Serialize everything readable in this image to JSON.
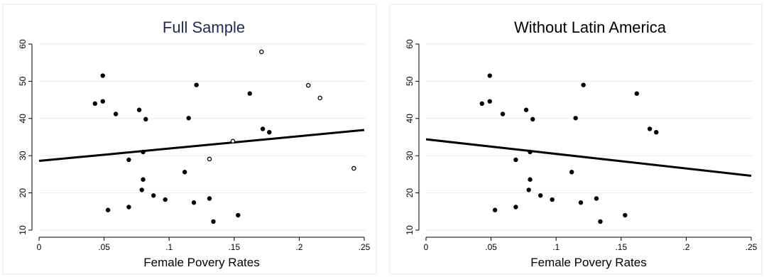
{
  "chart_data": [
    {
      "type": "scatter",
      "title": "Full Sample",
      "title_color": "#1f2a56",
      "xlabel": "Female Povery Rates",
      "ylabel": "",
      "xlim": [
        0,
        0.25
      ],
      "ylim": [
        10,
        60
      ],
      "x_ticks": [
        0,
        0.05,
        0.1,
        0.15,
        0.2,
        0.25
      ],
      "x_tick_labels": [
        "0",
        ".05",
        ".1",
        ".15",
        ".2",
        ".25"
      ],
      "y_ticks": [
        10,
        20,
        30,
        40,
        50,
        60
      ],
      "y_tick_labels": [
        "10",
        "20",
        "30",
        "40",
        "50",
        "60"
      ],
      "grid": "horizontal",
      "series": [
        {
          "marker": "filled-circle",
          "points": [
            [
              0.043,
              44.0
            ],
            [
              0.049,
              44.6
            ],
            [
              0.049,
              51.5
            ],
            [
              0.053,
              15.4
            ],
            [
              0.059,
              41.2
            ],
            [
              0.069,
              28.9
            ],
            [
              0.069,
              16.2
            ],
            [
              0.077,
              42.3
            ],
            [
              0.079,
              20.8
            ],
            [
              0.08,
              31.0
            ],
            [
              0.08,
              23.6
            ],
            [
              0.082,
              39.8
            ],
            [
              0.088,
              19.3
            ],
            [
              0.097,
              18.2
            ],
            [
              0.112,
              25.6
            ],
            [
              0.115,
              40.1
            ],
            [
              0.119,
              17.4
            ],
            [
              0.121,
              49.0
            ],
            [
              0.131,
              18.5
            ],
            [
              0.134,
              12.3
            ],
            [
              0.153,
              14.0
            ],
            [
              0.162,
              46.7
            ],
            [
              0.172,
              37.2
            ],
            [
              0.177,
              36.3
            ]
          ]
        },
        {
          "marker": "hollow-circle",
          "points": [
            [
              0.131,
              29.1
            ],
            [
              0.149,
              33.9
            ],
            [
              0.171,
              57.9
            ],
            [
              0.207,
              48.9
            ],
            [
              0.216,
              45.5
            ],
            [
              0.242,
              26.6
            ]
          ]
        }
      ],
      "fit_line": {
        "x": [
          0,
          0.25
        ],
        "y": [
          28.6,
          36.9
        ]
      }
    },
    {
      "type": "scatter",
      "title": "Without Latin America",
      "title_color": "#000000",
      "xlabel": "Female Povery Rates",
      "ylabel": "",
      "xlim": [
        0,
        0.25
      ],
      "ylim": [
        10,
        60
      ],
      "x_ticks": [
        0,
        0.05,
        0.1,
        0.15,
        0.2,
        0.25
      ],
      "x_tick_labels": [
        "0",
        ".05",
        ".1",
        ".15",
        ".2",
        ".25"
      ],
      "y_ticks": [
        10,
        20,
        30,
        40,
        50,
        60
      ],
      "y_tick_labels": [
        "10",
        "20",
        "30",
        "40",
        "50",
        "60"
      ],
      "grid": "horizontal",
      "series": [
        {
          "marker": "filled-circle",
          "points": [
            [
              0.043,
              44.0
            ],
            [
              0.049,
              44.6
            ],
            [
              0.049,
              51.5
            ],
            [
              0.053,
              15.4
            ],
            [
              0.059,
              41.2
            ],
            [
              0.069,
              28.9
            ],
            [
              0.069,
              16.2
            ],
            [
              0.077,
              42.3
            ],
            [
              0.079,
              20.8
            ],
            [
              0.08,
              31.0
            ],
            [
              0.08,
              23.6
            ],
            [
              0.082,
              39.8
            ],
            [
              0.088,
              19.3
            ],
            [
              0.097,
              18.2
            ],
            [
              0.112,
              25.6
            ],
            [
              0.115,
              40.1
            ],
            [
              0.119,
              17.4
            ],
            [
              0.121,
              49.0
            ],
            [
              0.131,
              18.5
            ],
            [
              0.134,
              12.3
            ],
            [
              0.153,
              14.0
            ],
            [
              0.162,
              46.7
            ],
            [
              0.172,
              37.2
            ],
            [
              0.177,
              36.3
            ]
          ]
        }
      ],
      "fit_line": {
        "x": [
          0,
          0.25
        ],
        "y": [
          34.4,
          24.6
        ]
      }
    }
  ]
}
